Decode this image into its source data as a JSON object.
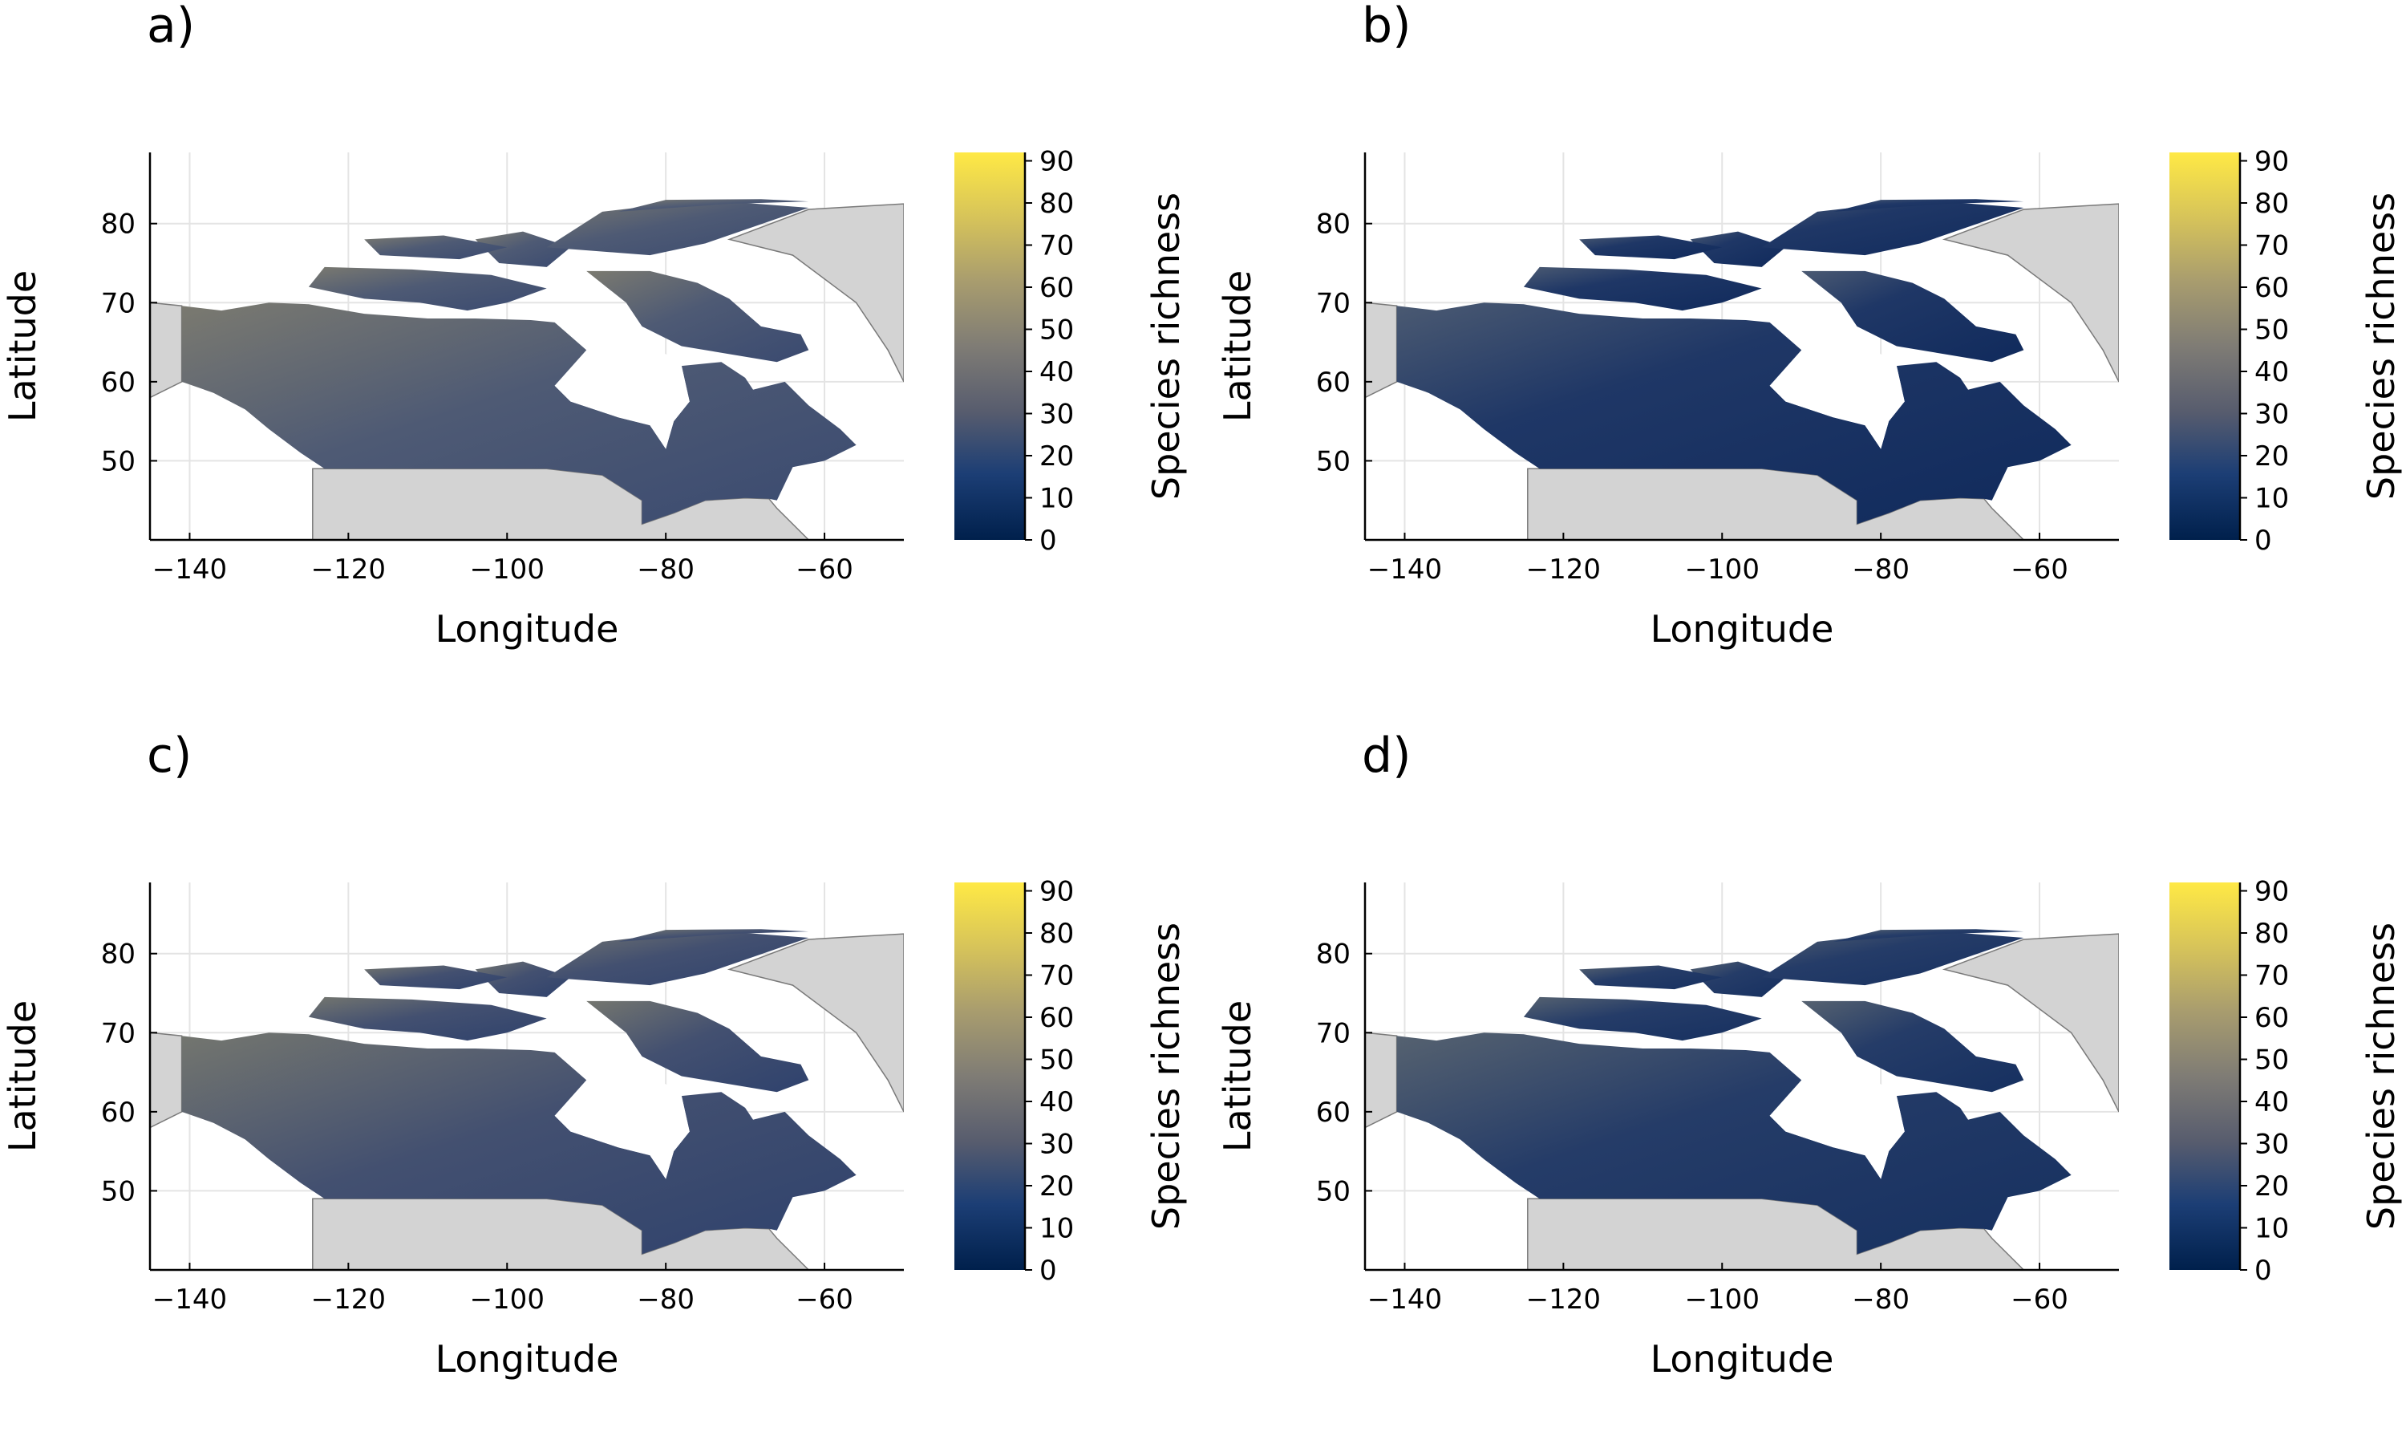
{
  "panels": [
    {
      "letter": "a)",
      "xlabel": "Longitude",
      "ylabel": "Latitude",
      "colorbar_label": "Species richness",
      "level": 0.42
    },
    {
      "letter": "b)",
      "xlabel": "Longitude",
      "ylabel": "Latitude",
      "colorbar_label": "Species richness",
      "level": 0.18
    },
    {
      "letter": "c)",
      "xlabel": "Longitude",
      "ylabel": "Latitude",
      "colorbar_label": "Species richness",
      "level": 0.36
    },
    {
      "letter": "d)",
      "xlabel": "Longitude",
      "ylabel": "Latitude",
      "colorbar_label": "Species richness",
      "level": 0.22
    }
  ],
  "x_ticks": [
    "−140",
    "−120",
    "−100",
    "−80",
    "−60"
  ],
  "x_tick_values": [
    -140,
    -120,
    -100,
    -80,
    -60
  ],
  "xlim": [
    -145,
    -50
  ],
  "y_ticks": [
    "50",
    "60",
    "70",
    "80"
  ],
  "y_tick_values": [
    50,
    60,
    70,
    80
  ],
  "ylim": [
    40,
    89
  ],
  "colorbar_ticks": [
    "0",
    "10",
    "20",
    "30",
    "40",
    "50",
    "60",
    "70",
    "80",
    "90"
  ],
  "colorbar_tick_values": [
    0,
    10,
    20,
    30,
    40,
    50,
    60,
    70,
    80,
    90
  ],
  "colorbar_range": [
    0,
    92
  ],
  "colormap": [
    "#00204c",
    "#1c3e75",
    "#575c6e",
    "#7f7c75",
    "#a99d6e",
    "#d6c35a",
    "#ffe945"
  ],
  "land_outside_color": "#d3d3d3",
  "grid": true
}
